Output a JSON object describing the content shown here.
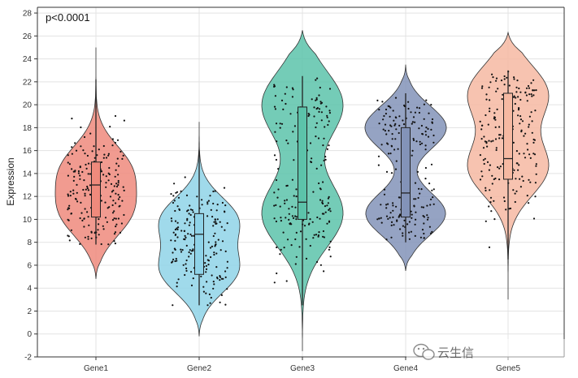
{
  "chart_data": {
    "type": "violin",
    "title": "",
    "xlabel": "",
    "ylabel": "Expression",
    "ylim": [
      -2,
      28.5
    ],
    "yticks": [
      -2,
      0,
      2,
      4,
      6,
      8,
      10,
      12,
      14,
      16,
      18,
      20,
      22,
      24,
      26,
      28
    ],
    "grid": true,
    "annotation": "p<0.0001",
    "categories": [
      "Gene1",
      "Gene2",
      "Gene3",
      "Gene4",
      "Gene5"
    ],
    "series": [
      {
        "category": "Gene1",
        "color": "#ef8a7c",
        "violin_range": [
          4.8,
          25.0
        ],
        "modes": [
          {
            "center": 10.5,
            "width": 1.0
          },
          {
            "center": 14.5,
            "width": 0.98
          }
        ],
        "box": {
          "q1": 10.2,
          "median": 13.0,
          "q3": 15.0,
          "whisker_low": 7.8,
          "whisker_high": 22.2
        },
        "points_range": [
          7.8,
          22.0
        ]
      },
      {
        "category": "Gene2",
        "color": "#8fd3e8",
        "violin_range": [
          -0.2,
          18.5
        ],
        "modes": [
          {
            "center": 5.5,
            "width": 1.0
          },
          {
            "center": 10.0,
            "width": 1.0
          }
        ],
        "box": {
          "q1": 5.2,
          "median": 8.7,
          "q3": 10.5,
          "whisker_low": 2.5,
          "whisker_high": 16.0
        },
        "points_range": [
          2.5,
          16.0
        ]
      },
      {
        "category": "Gene3",
        "color": "#5cc3aa",
        "violin_range": [
          -1.5,
          26.5
        ],
        "modes": [
          {
            "center": 10.5,
            "width": 1.0
          },
          {
            "center": 20.0,
            "width": 1.0
          }
        ],
        "box": {
          "q1": 10.0,
          "median": 11.5,
          "q3": 19.8,
          "whisker_low": 2.5,
          "whisker_high": 22.5
        },
        "points_range": [
          2.5,
          22.5
        ]
      },
      {
        "category": "Gene4",
        "color": "#8393b8",
        "violin_range": [
          5.5,
          23.5
        ],
        "modes": [
          {
            "center": 10.5,
            "width": 0.98
          },
          {
            "center": 18.0,
            "width": 1.0
          }
        ],
        "box": {
          "q1": 10.2,
          "median": 12.3,
          "q3": 18.0,
          "whisker_low": 8.0,
          "whisker_high": 21.0
        },
        "points_range": [
          8.0,
          21.0
        ]
      },
      {
        "category": "Gene5",
        "color": "#f6b9a2",
        "violin_range": [
          3.0,
          26.3
        ],
        "modes": [
          {
            "center": 14.5,
            "width": 1.0
          },
          {
            "center": 21.0,
            "width": 1.0
          }
        ],
        "box": {
          "q1": 13.5,
          "median": 15.3,
          "q3": 21.0,
          "whisker_low": 6.5,
          "whisker_high": 23.0
        },
        "points_range": [
          6.5,
          23.0
        ]
      }
    ]
  },
  "watermark": {
    "text": "云生信",
    "icon": "wechat-icon"
  }
}
